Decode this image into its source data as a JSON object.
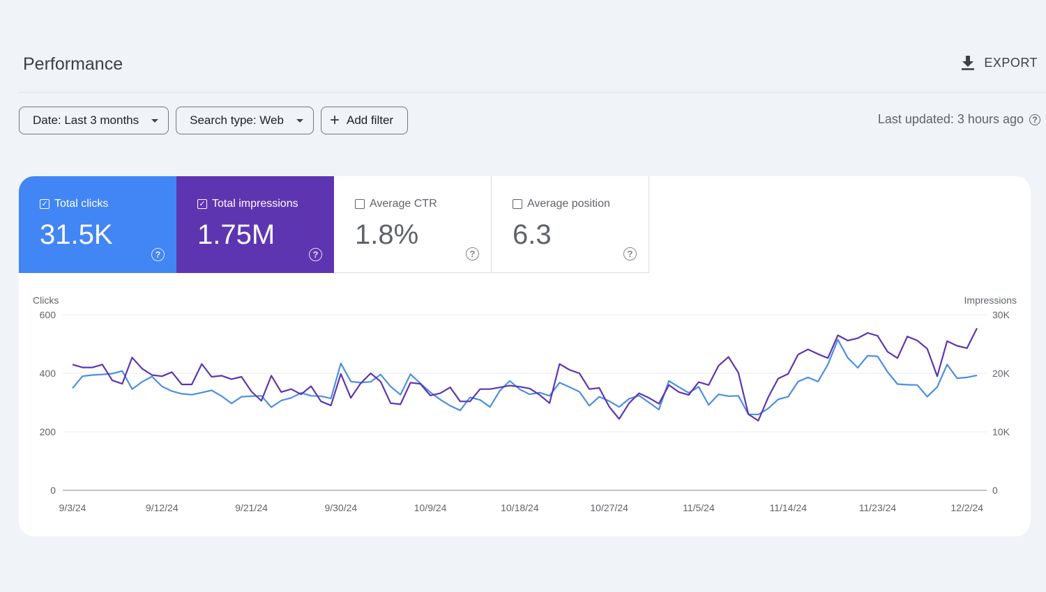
{
  "page": {
    "title": "Performance",
    "export_label": "EXPORT",
    "last_updated": "Last updated: 3 hours ago"
  },
  "filters": {
    "date": "Date: Last 3 months",
    "search_type": "Search type: Web",
    "add_filter": "Add filter"
  },
  "metrics": [
    {
      "label": "Total clicks",
      "value": "31.5K",
      "checked": true,
      "color": "#4285f4"
    },
    {
      "label": "Total impressions",
      "value": "1.75M",
      "checked": true,
      "color": "#5e35b1"
    },
    {
      "label": "Average CTR",
      "value": "1.8%",
      "checked": false
    },
    {
      "label": "Average position",
      "value": "6.3",
      "checked": false
    }
  ],
  "chart_data": {
    "type": "line",
    "ylabel_left": "Clicks",
    "ylabel_right": "Impressions",
    "ylim_left": [
      0,
      600
    ],
    "ylim_right": [
      0,
      30000
    ],
    "yticks_left": [
      "0",
      "200",
      "400",
      "600"
    ],
    "yticks_right": [
      "0",
      "10K",
      "20K",
      "30K"
    ],
    "xticks": [
      "9/3/24",
      "9/12/24",
      "9/21/24",
      "9/30/24",
      "10/9/24",
      "10/18/24",
      "10/27/24",
      "11/5/24",
      "11/14/24",
      "11/23/24",
      "12/2/24"
    ],
    "grid": true,
    "series": [
      {
        "name": "Clicks",
        "axis": "left",
        "color": "#4a8fe0",
        "values": [
          349,
          390,
          394,
          396,
          399,
          408,
          346,
          371,
          389,
          355,
          339,
          330,
          327,
          334,
          342,
          322,
          297,
          320,
          322,
          323,
          284,
          307,
          316,
          333,
          323,
          322,
          314,
          434,
          372,
          368,
          371,
          396,
          355,
          327,
          397,
          366,
          335,
          310,
          289,
          273,
          318,
          309,
          285,
          341,
          374,
          345,
          328,
          334,
          323,
          368,
          353,
          337,
          289,
          320,
          305,
          285,
          313,
          324,
          300,
          276,
          374,
          353,
          333,
          354,
          292,
          328,
          322,
          323,
          260,
          259,
          280,
          311,
          320,
          372,
          386,
          372,
          430,
          515,
          453,
          419,
          460,
          458,
          405,
          363,
          361,
          360,
          320,
          353,
          430,
          383,
          386,
          393
        ]
      },
      {
        "name": "Impressions",
        "axis": "right",
        "color": "#5e35b1",
        "values": [
          21500,
          21000,
          21000,
          21500,
          18800,
          18200,
          22700,
          20800,
          19700,
          19500,
          20200,
          18100,
          18100,
          21600,
          19400,
          19600,
          19000,
          19400,
          16900,
          15300,
          19600,
          16800,
          17300,
          16400,
          17800,
          15200,
          14500,
          19900,
          15800,
          18300,
          20000,
          18600,
          14900,
          14700,
          18400,
          18200,
          16200,
          16600,
          17600,
          15200,
          15200,
          17300,
          17300,
          17600,
          17900,
          17700,
          17400,
          16300,
          14900,
          21600,
          20600,
          20000,
          17300,
          17500,
          14300,
          12200,
          14900,
          16600,
          15800,
          14800,
          18000,
          16800,
          16300,
          18500,
          18000,
          21300,
          22800,
          20100,
          13000,
          11900,
          15900,
          19100,
          19900,
          23200,
          24100,
          23300,
          22600,
          26500,
          25600,
          26000,
          26900,
          26400,
          23700,
          22600,
          26300,
          25600,
          24200,
          19500,
          25500,
          24700,
          24300,
          27700
        ]
      }
    ]
  }
}
